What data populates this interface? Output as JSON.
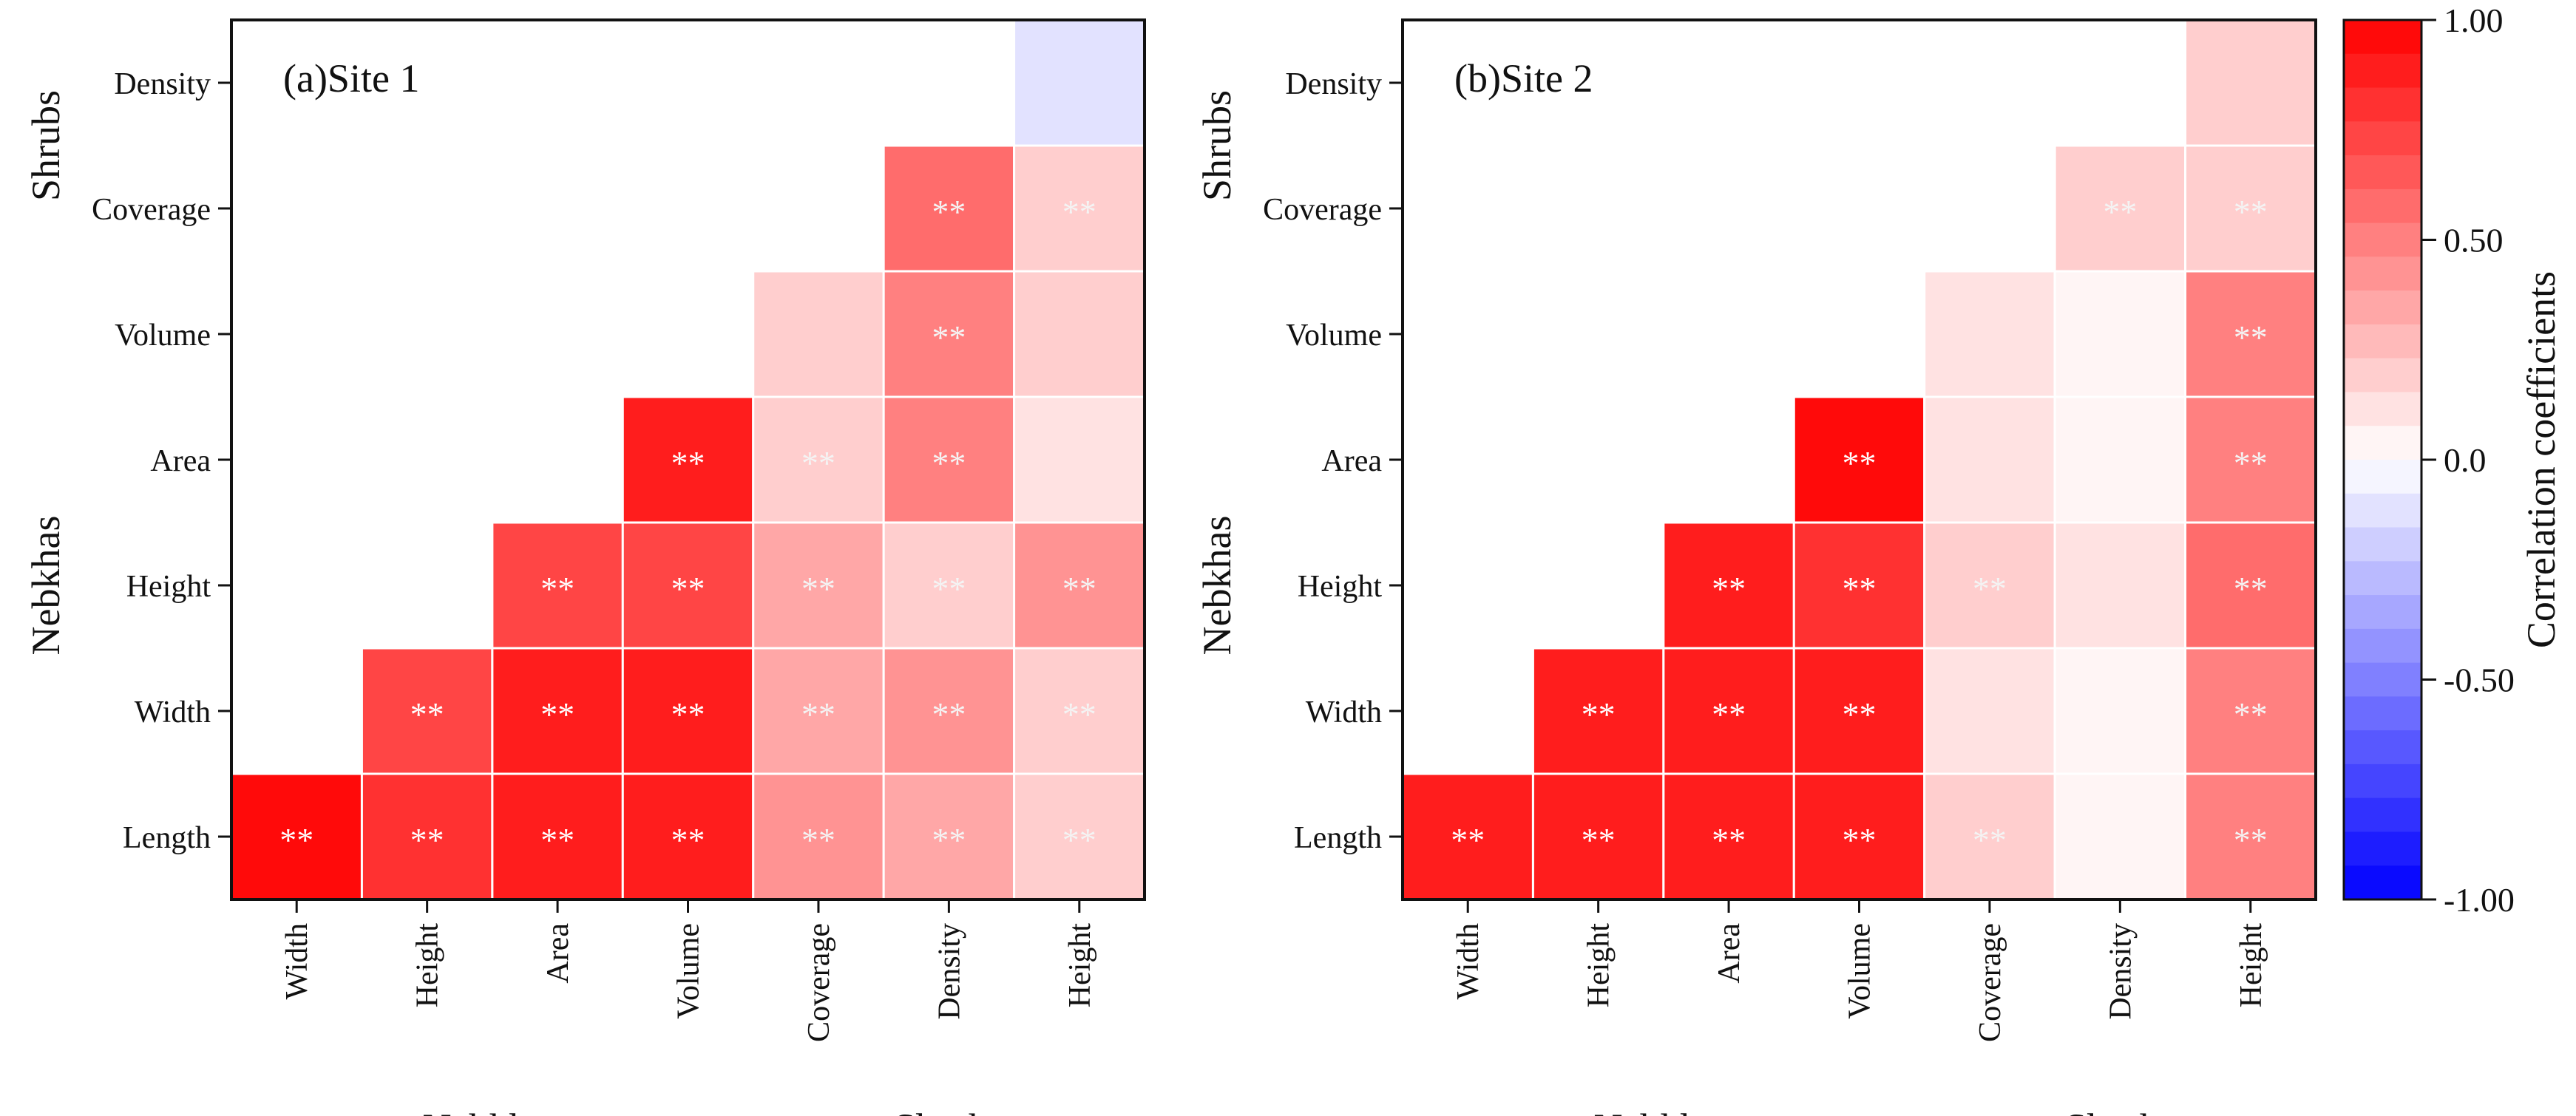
{
  "chart_data": [
    {
      "type": "heatmap",
      "title": "(a)Site 1",
      "row_labels": [
        "Density",
        "Coverage",
        "Volume",
        "Area",
        "Height",
        "Width",
        "Length"
      ],
      "col_labels": [
        "Width",
        "Height",
        "Area",
        "Volume",
        "Coverage",
        "Density",
        "Height"
      ],
      "row_groups": [
        {
          "name": "Shrubs",
          "rows": [
            "Density",
            "Coverage"
          ]
        },
        {
          "name": "Nebkhas",
          "rows": [
            "Volume",
            "Area",
            "Height",
            "Width",
            "Length"
          ]
        }
      ],
      "col_groups": [
        {
          "name": "Nebkhas",
          "cols": [
            "Width",
            "Height",
            "Area",
            "Volume"
          ]
        },
        {
          "name": "Shrubs",
          "cols": [
            "Coverage",
            "Density",
            "Height"
          ]
        }
      ],
      "values": [
        [
          null,
          null,
          null,
          null,
          null,
          null,
          -0.12
        ],
        [
          null,
          null,
          null,
          null,
          null,
          0.55,
          0.2
        ],
        [
          null,
          null,
          null,
          null,
          0.2,
          0.5,
          0.22
        ],
        [
          null,
          null,
          null,
          0.92,
          0.22,
          0.48,
          0.15
        ],
        [
          null,
          null,
          0.7,
          0.75,
          0.35,
          0.22,
          0.45
        ],
        [
          null,
          0.72,
          0.92,
          0.88,
          0.38,
          0.42,
          0.22
        ],
        [
          0.93,
          0.82,
          0.85,
          0.88,
          0.42,
          0.38,
          0.2
        ]
      ],
      "significance": [
        [
          "",
          "",
          "",
          "",
          "",
          "",
          ""
        ],
        [
          "",
          "",
          "",
          "",
          "",
          "**",
          "**"
        ],
        [
          "",
          "",
          "",
          "",
          "",
          "**",
          ""
        ],
        [
          "",
          "",
          "",
          "**",
          "**",
          "**",
          ""
        ],
        [
          "",
          "",
          "**",
          "**",
          "**",
          "**",
          "**"
        ],
        [
          "",
          "**",
          "**",
          "**",
          "**",
          "**",
          "**"
        ],
        [
          "**",
          "**",
          "**",
          "**",
          "**",
          "**",
          "**"
        ]
      ]
    },
    {
      "type": "heatmap",
      "title": "(b)Site 2",
      "row_labels": [
        "Density",
        "Coverage",
        "Volume",
        "Area",
        "Height",
        "Width",
        "Length"
      ],
      "col_labels": [
        "Width",
        "Height",
        "Area",
        "Volume",
        "Coverage",
        "Density",
        "Height"
      ],
      "row_groups": [
        {
          "name": "Shrubs",
          "rows": [
            "Density",
            "Coverage"
          ]
        },
        {
          "name": "Nebkhas",
          "rows": [
            "Volume",
            "Area",
            "Height",
            "Width",
            "Length"
          ]
        }
      ],
      "col_groups": [
        {
          "name": "Nebkhas",
          "cols": [
            "Width",
            "Height",
            "Area",
            "Volume"
          ]
        },
        {
          "name": "Shrubs",
          "cols": [
            "Coverage",
            "Density",
            "Height"
          ]
        }
      ],
      "values": [
        [
          null,
          null,
          null,
          null,
          null,
          null,
          0.2
        ],
        [
          null,
          null,
          null,
          null,
          null,
          0.22,
          0.18
        ],
        [
          null,
          null,
          null,
          null,
          0.15,
          0.03,
          0.5
        ],
        [
          null,
          null,
          null,
          0.93,
          0.15,
          0.03,
          0.48
        ],
        [
          null,
          null,
          0.85,
          0.82,
          0.2,
          0.15,
          0.55
        ],
        [
          null,
          0.85,
          0.92,
          0.88,
          0.15,
          0.03,
          0.48
        ],
        [
          0.88,
          0.85,
          0.9,
          0.88,
          0.18,
          0.03,
          0.48
        ]
      ],
      "significance": [
        [
          "",
          "",
          "",
          "",
          "",
          "",
          ""
        ],
        [
          "",
          "",
          "",
          "",
          "",
          "**",
          "**"
        ],
        [
          "",
          "",
          "",
          "",
          "",
          "",
          "**"
        ],
        [
          "",
          "",
          "",
          "**",
          "",
          "",
          "**"
        ],
        [
          "",
          "",
          "**",
          "**",
          "**",
          "",
          "**"
        ],
        [
          "",
          "**",
          "**",
          "**",
          "",
          "",
          "**"
        ],
        [
          "**",
          "**",
          "**",
          "**",
          "**",
          "",
          "**"
        ]
      ]
    }
  ],
  "axis_groups": {
    "x_left": "Nebkhas",
    "x_right": "Shrubs",
    "y_top": "Shrubs",
    "y_bottom": "Nebkhas"
  },
  "colorbar": {
    "label": "Correlation coefficients",
    "range": [
      -1.0,
      1.0
    ],
    "levels": 26,
    "ticks": [
      "1.00",
      "0.50",
      "0.0",
      "-0.50",
      "-1.00"
    ],
    "tick_values": [
      1.0,
      0.5,
      0.0,
      -0.5,
      -1.0
    ],
    "color_pos": "#ff0000",
    "color_neutral": "#ffffff",
    "color_neg": "#0000ff"
  }
}
